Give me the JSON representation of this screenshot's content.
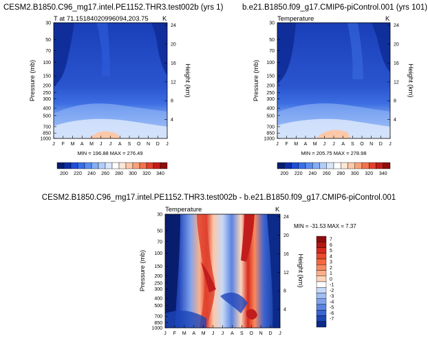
{
  "chart_data": [
    {
      "type": "heatmap",
      "title": "CESM2.B1850.C96_mg17.intel.PE1152.THR3.test002b (yrs 1)",
      "subtitle_left": "T at 71.15184020996094,203.75",
      "subtitle_right": "K",
      "ylabel": "Pressure (mb)",
      "ylabel_right": "Height (km)",
      "months": [
        "J",
        "F",
        "M",
        "A",
        "M",
        "J",
        "J",
        "A",
        "S",
        "O",
        "N",
        "D",
        "J"
      ],
      "pressure_ticks": [
        "30",
        "50",
        "70",
        "100",
        "150",
        "200",
        "250",
        "300",
        "400",
        "500",
        "700",
        "850",
        "1000"
      ],
      "height_ticks": [
        "24",
        "20",
        "16",
        "12",
        "8",
        "4"
      ],
      "minmax_label": "MIN = 196.88 MAX = 276.49",
      "colorbar": {
        "labels": [
          "200",
          "220",
          "240",
          "260",
          "280",
          "300",
          "320",
          "340"
        ],
        "colors": [
          "#081d6e",
          "#0d2fa6",
          "#1f4fd6",
          "#3a6fe8",
          "#5b8ef0",
          "#86adf4",
          "#b3cdf8",
          "#dbe7fb",
          "#ffffff",
          "#fde6d6",
          "#fcc8a9",
          "#f9a27a",
          "#f2744f",
          "#e0422e",
          "#c21d1d",
          "#8e0d0d"
        ]
      }
    },
    {
      "type": "heatmap",
      "title": "b.e21.B1850.f09_g17.CMIP6-piControl.001 (yrs 101)",
      "subtitle_left": "Temperature",
      "subtitle_right": "K",
      "ylabel": "Pressure (mb)",
      "ylabel_right": "Height (km)",
      "months": [
        "J",
        "F",
        "M",
        "A",
        "M",
        "J",
        "J",
        "A",
        "S",
        "O",
        "N",
        "D",
        "J"
      ],
      "pressure_ticks": [
        "30",
        "50",
        "70",
        "100",
        "150",
        "200",
        "250",
        "300",
        "400",
        "500",
        "700",
        "850",
        "1000"
      ],
      "height_ticks": [
        "24",
        "20",
        "16",
        "12",
        "8",
        "4"
      ],
      "minmax_label": "MIN = 205.75 MAX = 278.98",
      "colorbar": {
        "labels": [
          "200",
          "220",
          "240",
          "260",
          "280",
          "300",
          "320",
          "340"
        ],
        "colors": [
          "#081d6e",
          "#0d2fa6",
          "#1f4fd6",
          "#3a6fe8",
          "#5b8ef0",
          "#86adf4",
          "#b3cdf8",
          "#dbe7fb",
          "#ffffff",
          "#fde6d6",
          "#fcc8a9",
          "#f9a27a",
          "#f2744f",
          "#e0422e",
          "#c21d1d",
          "#8e0d0d"
        ]
      }
    },
    {
      "type": "heatmap",
      "title": "CESM2.B1850.C96_mg17.intel.PE1152.THR3.test002b - b.e21.B1850.f09_g17.CMIP6-piControl.001",
      "subtitle_left": "Temperature",
      "subtitle_right": "K",
      "ylabel": "Pressure (mb)",
      "ylabel_right": "Height (km)",
      "months": [
        "J",
        "F",
        "M",
        "A",
        "M",
        "J",
        "J",
        "A",
        "S",
        "O",
        "N",
        "D",
        "J"
      ],
      "pressure_ticks": [
        "30",
        "50",
        "70",
        "100",
        "150",
        "200",
        "250",
        "300",
        "400",
        "500",
        "700",
        "850",
        "1000"
      ],
      "height_ticks": [
        "24",
        "20",
        "16",
        "12",
        "8",
        "4"
      ],
      "minmax_label": "MIN = -31.53 MAX =  7.37",
      "colorbar": {
        "labels": [
          "7",
          "6",
          "5",
          "4",
          "3",
          "2",
          "1",
          "0",
          "-1",
          "-2",
          "-3",
          "-4",
          "-5",
          "-6",
          "-7"
        ],
        "colors": [
          "#8e0d0d",
          "#b31515",
          "#d62b1e",
          "#ea4a2c",
          "#f5683f",
          "#f98a5e",
          "#fbb08b",
          "#fdd4bc",
          "#ffffff",
          "#c7d9f7",
          "#a0bdf2",
          "#7fa2ec",
          "#5b84e2",
          "#3a64d3",
          "#1e46b8",
          "#0b2a8a"
        ]
      }
    }
  ]
}
